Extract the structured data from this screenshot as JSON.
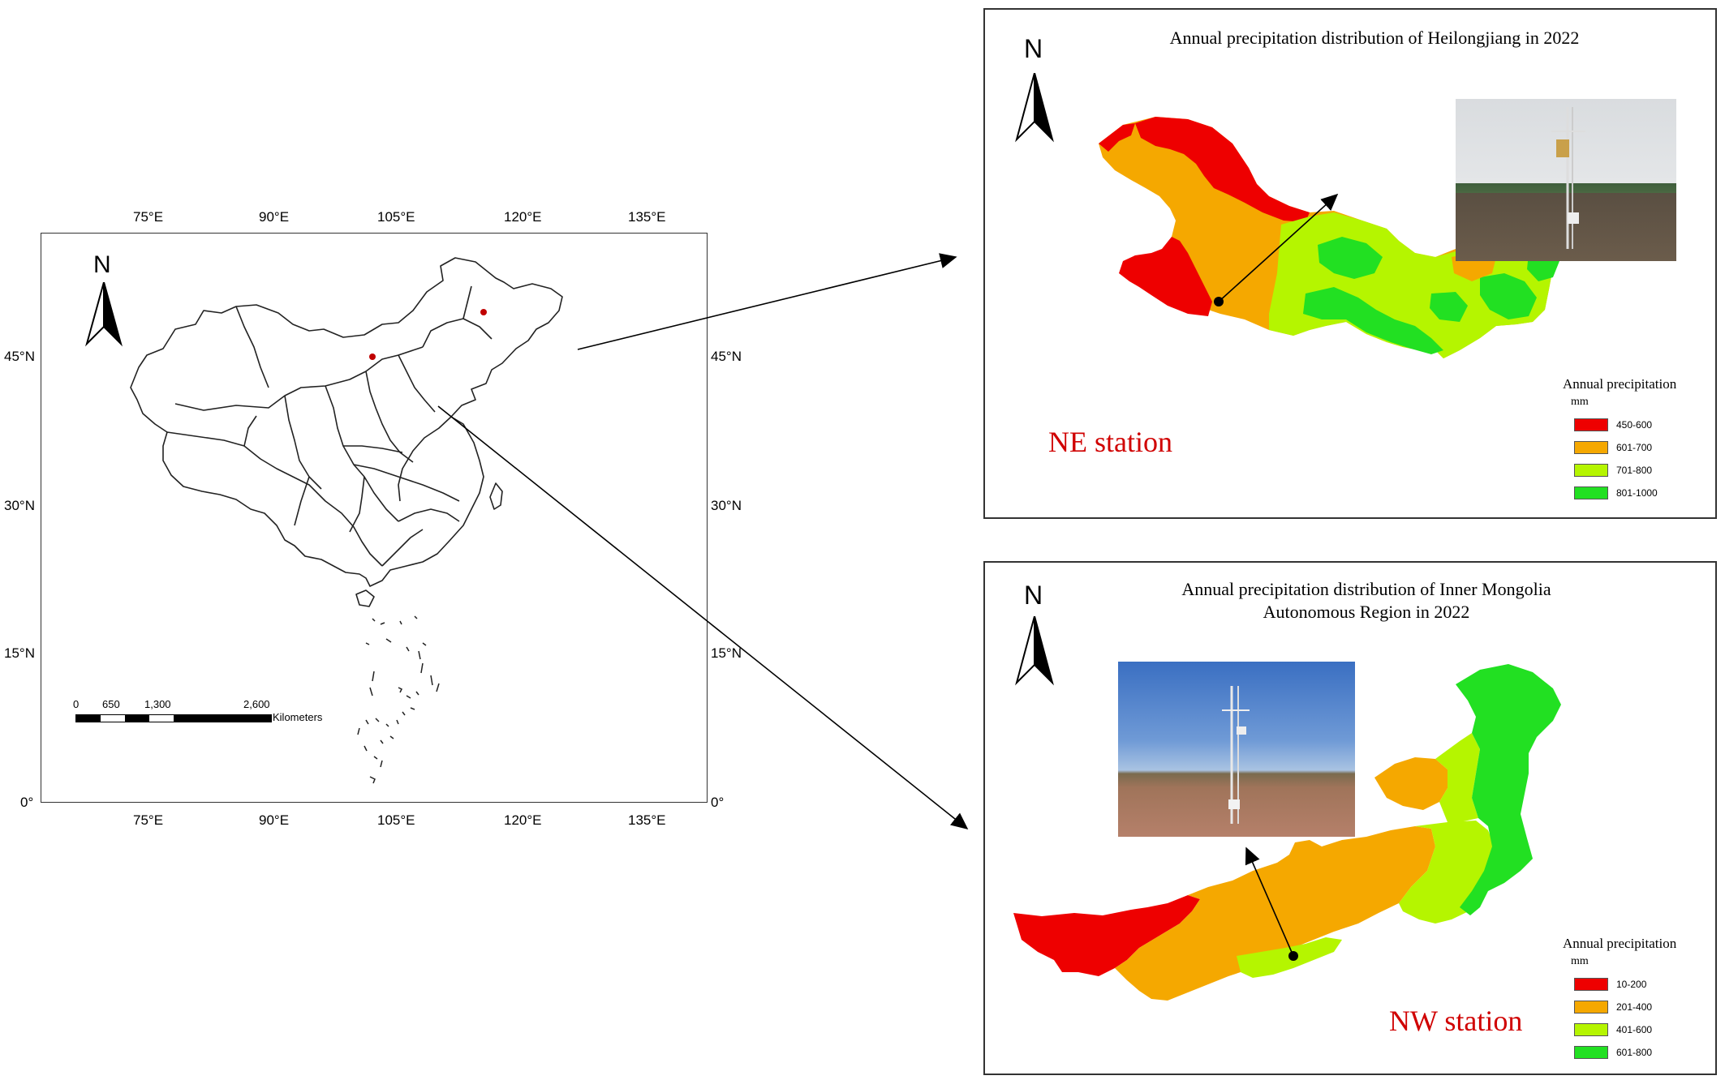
{
  "main_map": {
    "north_label": "N",
    "lon_labels_top": [
      "75°E",
      "90°E",
      "105°E",
      "120°E",
      "135°E"
    ],
    "lon_labels_bottom": [
      "75°E",
      "90°E",
      "105°E",
      "120°E",
      "135°E"
    ],
    "lat_labels_left": [
      "45°N",
      "30°N",
      "15°N",
      "0°"
    ],
    "lat_labels_right": [
      "45°N",
      "30°N",
      "15°N",
      "0°"
    ],
    "scale_ticks": [
      "0",
      "650",
      "1,300",
      "2,600"
    ],
    "scale_unit": "Kilometers",
    "station_color": "#c00000"
  },
  "ne_panel": {
    "title": "Annual precipitation distribution of Heilongjiang in 2022",
    "north_label": "N",
    "station_label": "NE station",
    "legend_title": "Annual precipitation",
    "legend_unit": "mm",
    "legend": [
      {
        "label": "450-600",
        "color": "#ee0000"
      },
      {
        "label": "601-700",
        "color": "#f5a800"
      },
      {
        "label": "701-800",
        "color": "#b5f500"
      },
      {
        "label": "801-1000",
        "color": "#22e022"
      }
    ]
  },
  "nw_panel": {
    "title_line1": "Annual precipitation distribution of Inner Mongolia",
    "title_line2": "Autonomous Region in 2022",
    "north_label": "N",
    "station_label": "NW station",
    "legend_title": "Annual precipitation",
    "legend_unit": "mm",
    "legend": [
      {
        "label": "10-200",
        "color": "#ee0000"
      },
      {
        "label": "201-400",
        "color": "#f5a800"
      },
      {
        "label": "401-600",
        "color": "#b5f500"
      },
      {
        "label": "601-800",
        "color": "#22e022"
      }
    ]
  },
  "colors": {
    "station_label": "#d00000",
    "red": "#ee0000",
    "orange": "#f5a800",
    "yellowgreen": "#b5f500",
    "green": "#22e022"
  }
}
